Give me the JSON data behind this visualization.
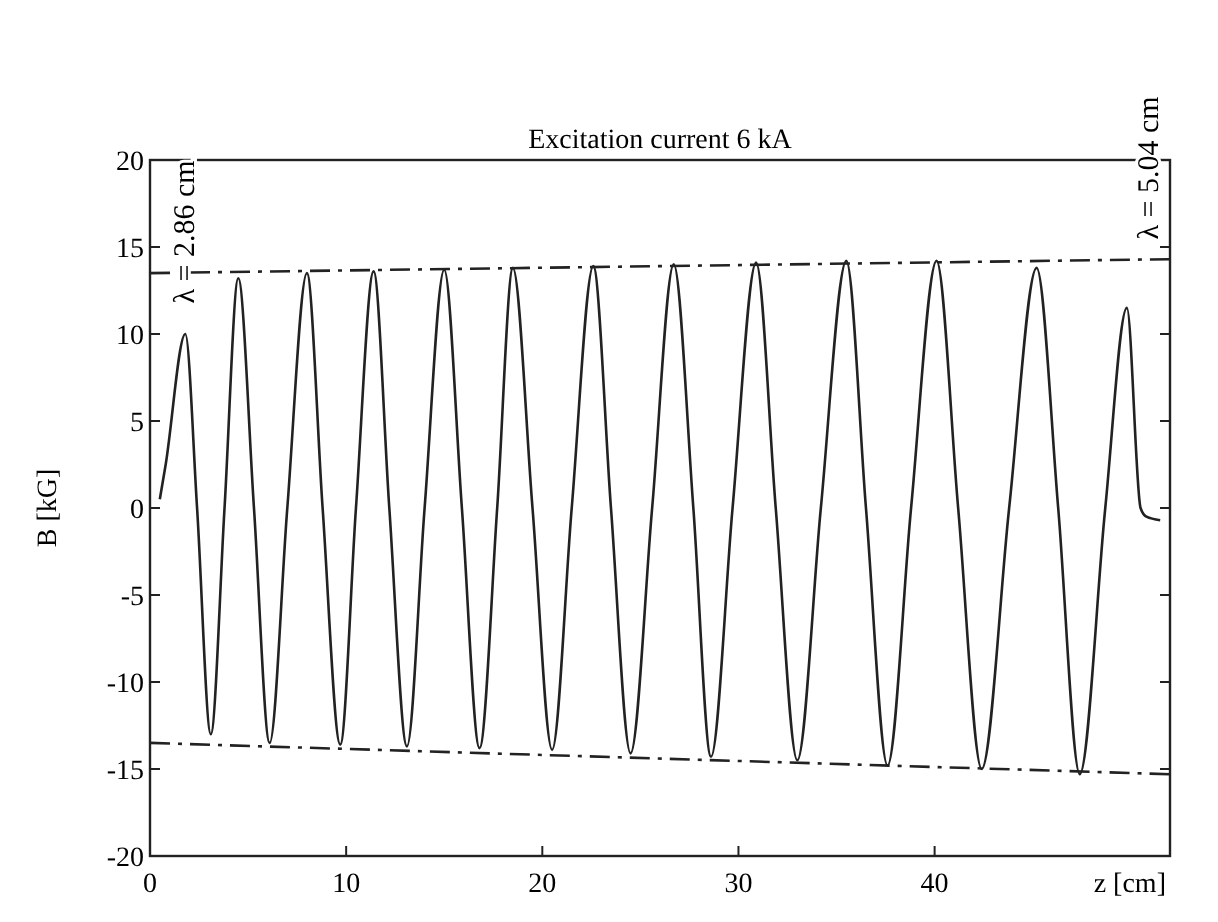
{
  "chart_data": {
    "type": "line",
    "title": "Excitation current 6 kA",
    "xlabel": "z [cm]",
    "ylabel": "B [kG]",
    "annotations": [
      "λ = 2.86 cm",
      "λ = 5.04 cm"
    ],
    "xlim": [
      0,
      52
    ],
    "ylim": [
      -20,
      20
    ],
    "xticks": [
      0,
      10,
      20,
      30,
      40
    ],
    "yticks": [
      -20,
      -15,
      -10,
      -5,
      0,
      5,
      10,
      15,
      20
    ],
    "grid": false,
    "series": [
      {
        "color": "#222222",
        "line_style": "solid",
        "x": [
          0.5,
          0.8,
          1.8,
          2.4,
          3.1,
          3.8,
          4.5,
          5.3,
          6.1,
          7.0,
          8.0,
          8.8,
          9.7,
          10.5,
          11.4,
          12.2,
          13.1,
          14.0,
          15.0,
          15.9,
          16.8,
          17.7,
          18.5,
          19.5,
          20.5,
          21.5,
          22.6,
          23.5,
          24.5,
          25.6,
          26.7,
          27.7,
          28.6,
          29.7,
          30.9,
          31.9,
          33.0,
          34.2,
          35.5,
          36.5,
          37.6,
          38.8,
          40.1,
          41.2,
          42.4,
          43.8,
          45.2,
          46.3,
          47.4,
          48.7,
          49.8,
          50.5,
          50.8,
          51.5
        ],
        "values": [
          0.5,
          2.5,
          10,
          0,
          -13,
          0,
          13.2,
          0,
          -13.5,
          0,
          13.5,
          0,
          -13.6,
          0,
          13.6,
          0,
          -13.7,
          0,
          13.7,
          0,
          -13.8,
          0,
          13.8,
          0,
          -13.9,
          0,
          13.9,
          0,
          -14.1,
          0,
          14,
          0,
          -14.3,
          0,
          14.1,
          0,
          -14.5,
          0,
          14.2,
          0,
          -14.8,
          0,
          14.2,
          0,
          -15,
          0,
          13.8,
          0,
          -15.3,
          0,
          11.5,
          0,
          -0.5,
          -0.7
        ]
      },
      {
        "color": "#222222",
        "line_style": "dashed",
        "x": [
          0,
          52
        ],
        "values": [
          13.5,
          14.3
        ]
      },
      {
        "color": "#222222",
        "line_style": "dashed",
        "x": [
          0,
          52
        ],
        "values": [
          -13.5,
          -15.3
        ]
      }
    ]
  }
}
